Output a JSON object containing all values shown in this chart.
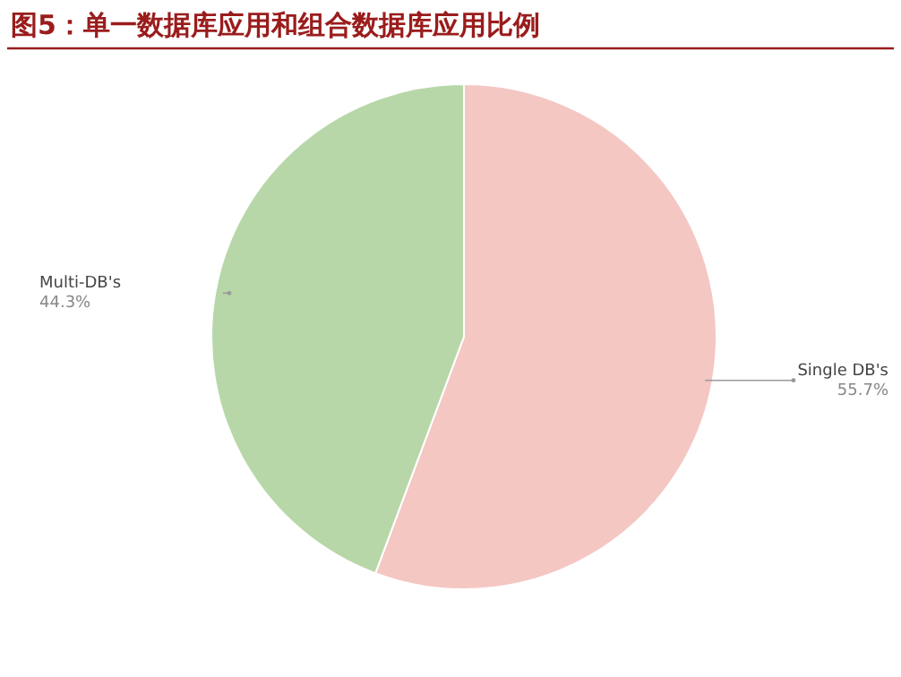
{
  "chart_data": {
    "type": "pie",
    "title": "图5：单一数据库应用和组合数据库应用比例",
    "categories": [
      "Single DB's",
      "Multi-DB's"
    ],
    "values": [
      55.7,
      44.3
    ],
    "colors": [
      "#f4c7c3",
      "#b7d7a8"
    ],
    "value_labels": [
      "55.7%",
      "44.3%"
    ]
  }
}
